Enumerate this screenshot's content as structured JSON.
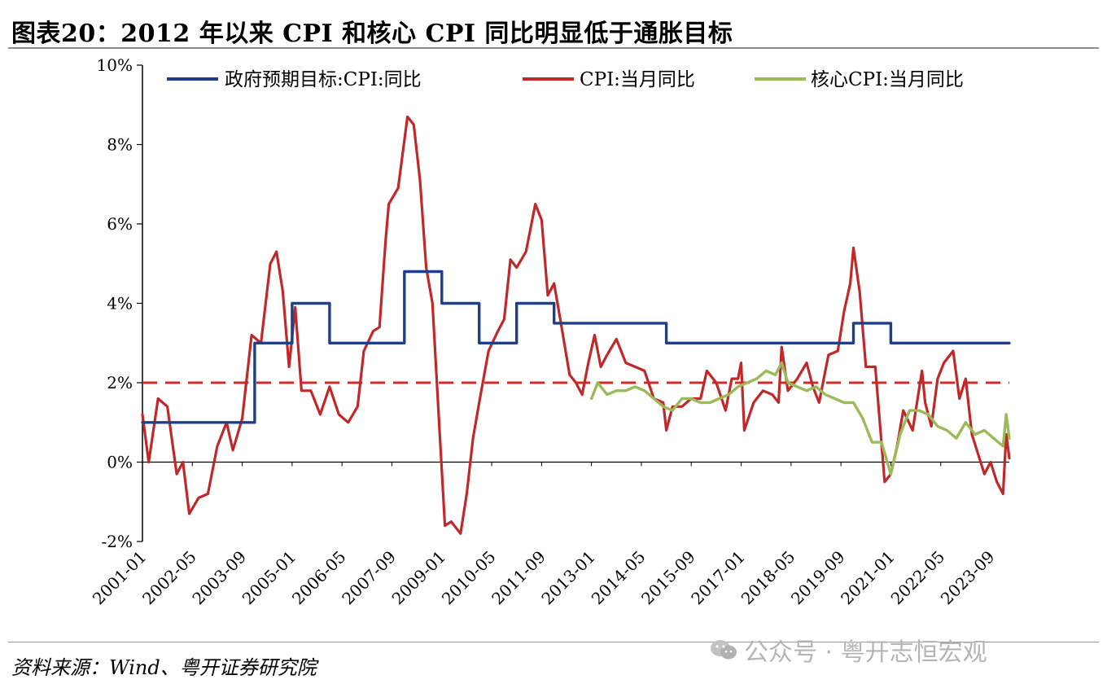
{
  "title": "图表20：2012 年以来 CPI 和核心 CPI 同比明显低于通胀目标",
  "source": "资料来源：Wind、粤开证券研究院",
  "watermark": "公众号 · 粤开志恒宏观",
  "chart_data": {
    "type": "line",
    "ylim": [
      -2,
      10
    ],
    "yticks": [
      "10%",
      "8%",
      "6%",
      "4%",
      "2%",
      "0%",
      "-2%"
    ],
    "ytick_values": [
      10,
      8,
      6,
      4,
      2,
      0,
      -2
    ],
    "x_start": "2001-01",
    "x_end": "2024-03",
    "xticks": [
      "2001-01",
      "2002-05",
      "2003-09",
      "2005-01",
      "2006-05",
      "2007-09",
      "2009-01",
      "2010-05",
      "2011-09",
      "2013-01",
      "2014-05",
      "2015-09",
      "2017-01",
      "2018-05",
      "2019-09",
      "2021-01",
      "2022-05",
      "2023-09"
    ],
    "reference_line": {
      "value": 2,
      "color": "#d42b27",
      "style": "dashed"
    },
    "legend_placement": "top",
    "series": [
      {
        "name": "政府预期目标:CPI:同比",
        "color": "#1f3f8c",
        "step": true,
        "points": [
          [
            "2001-01",
            1
          ],
          [
            "2004-01",
            1
          ],
          [
            "2004-01",
            3
          ],
          [
            "2005-01",
            3
          ],
          [
            "2005-01",
            4
          ],
          [
            "2006-01",
            4
          ],
          [
            "2006-01",
            3
          ],
          [
            "2008-01",
            3
          ],
          [
            "2008-01",
            4.8
          ],
          [
            "2009-01",
            4.8
          ],
          [
            "2009-01",
            4
          ],
          [
            "2010-01",
            4
          ],
          [
            "2010-01",
            3
          ],
          [
            "2011-01",
            3
          ],
          [
            "2011-01",
            4
          ],
          [
            "2012-01",
            4
          ],
          [
            "2012-01",
            3.5
          ],
          [
            "2015-01",
            3.5
          ],
          [
            "2015-01",
            3
          ],
          [
            "2020-01",
            3
          ],
          [
            "2020-01",
            3.5
          ],
          [
            "2021-01",
            3.5
          ],
          [
            "2021-01",
            3
          ],
          [
            "2024-03",
            3
          ]
        ]
      },
      {
        "name": "CPI:当月同比",
        "color": "#c0282a",
        "points": [
          [
            "2001-01",
            1.2
          ],
          [
            "2001-03",
            0
          ],
          [
            "2001-06",
            1.6
          ],
          [
            "2001-09",
            1.4
          ],
          [
            "2001-12",
            -0.3
          ],
          [
            "2002-02",
            0
          ],
          [
            "2002-04",
            -1.3
          ],
          [
            "2002-07",
            -0.9
          ],
          [
            "2002-10",
            -0.8
          ],
          [
            "2003-01",
            0.4
          ],
          [
            "2003-04",
            1.0
          ],
          [
            "2003-06",
            0.3
          ],
          [
            "2003-09",
            1.1
          ],
          [
            "2003-12",
            3.2
          ],
          [
            "2004-03",
            3.0
          ],
          [
            "2004-06",
            5.0
          ],
          [
            "2004-08",
            5.3
          ],
          [
            "2004-10",
            4.3
          ],
          [
            "2004-12",
            2.4
          ],
          [
            "2005-02",
            3.9
          ],
          [
            "2005-04",
            1.8
          ],
          [
            "2005-07",
            1.8
          ],
          [
            "2005-10",
            1.2
          ],
          [
            "2006-01",
            1.9
          ],
          [
            "2006-04",
            1.2
          ],
          [
            "2006-07",
            1.0
          ],
          [
            "2006-10",
            1.4
          ],
          [
            "2006-12",
            2.8
          ],
          [
            "2007-03",
            3.3
          ],
          [
            "2007-05",
            3.4
          ],
          [
            "2007-07",
            5.6
          ],
          [
            "2007-08",
            6.5
          ],
          [
            "2007-11",
            6.9
          ],
          [
            "2008-02",
            8.7
          ],
          [
            "2008-04",
            8.5
          ],
          [
            "2008-06",
            7.1
          ],
          [
            "2008-08",
            4.9
          ],
          [
            "2008-10",
            4.0
          ],
          [
            "2008-12",
            1.2
          ],
          [
            "2009-02",
            -1.6
          ],
          [
            "2009-04",
            -1.5
          ],
          [
            "2009-07",
            -1.8
          ],
          [
            "2009-09",
            -0.8
          ],
          [
            "2009-11",
            0.6
          ],
          [
            "2010-01",
            1.5
          ],
          [
            "2010-04",
            2.8
          ],
          [
            "2010-07",
            3.3
          ],
          [
            "2010-09",
            3.6
          ],
          [
            "2010-11",
            5.1
          ],
          [
            "2011-01",
            4.9
          ],
          [
            "2011-04",
            5.3
          ],
          [
            "2011-07",
            6.5
          ],
          [
            "2011-09",
            6.1
          ],
          [
            "2011-11",
            4.2
          ],
          [
            "2012-01",
            4.5
          ],
          [
            "2012-03",
            3.6
          ],
          [
            "2012-06",
            2.2
          ],
          [
            "2012-08",
            2.0
          ],
          [
            "2012-10",
            1.7
          ],
          [
            "2012-12",
            2.5
          ],
          [
            "2013-02",
            3.2
          ],
          [
            "2013-04",
            2.4
          ],
          [
            "2013-06",
            2.7
          ],
          [
            "2013-09",
            3.1
          ],
          [
            "2013-12",
            2.5
          ],
          [
            "2014-03",
            2.4
          ],
          [
            "2014-06",
            2.3
          ],
          [
            "2014-09",
            1.6
          ],
          [
            "2014-12",
            1.5
          ],
          [
            "2015-01",
            0.8
          ],
          [
            "2015-03",
            1.4
          ],
          [
            "2015-06",
            1.4
          ],
          [
            "2015-09",
            1.6
          ],
          [
            "2015-12",
            1.6
          ],
          [
            "2016-02",
            2.3
          ],
          [
            "2016-05",
            2.0
          ],
          [
            "2016-08",
            1.3
          ],
          [
            "2016-10",
            2.1
          ],
          [
            "2016-12",
            2.1
          ],
          [
            "2017-01",
            2.5
          ],
          [
            "2017-02",
            0.8
          ],
          [
            "2017-05",
            1.5
          ],
          [
            "2017-08",
            1.8
          ],
          [
            "2017-11",
            1.7
          ],
          [
            "2018-01",
            1.5
          ],
          [
            "2018-02",
            2.9
          ],
          [
            "2018-04",
            1.8
          ],
          [
            "2018-07",
            2.1
          ],
          [
            "2018-10",
            2.5
          ],
          [
            "2018-12",
            1.9
          ],
          [
            "2019-02",
            1.5
          ],
          [
            "2019-05",
            2.7
          ],
          [
            "2019-08",
            2.8
          ],
          [
            "2019-10",
            3.8
          ],
          [
            "2019-12",
            4.5
          ],
          [
            "2020-01",
            5.4
          ],
          [
            "2020-03",
            4.3
          ],
          [
            "2020-05",
            2.4
          ],
          [
            "2020-08",
            2.4
          ],
          [
            "2020-10",
            0.5
          ],
          [
            "2020-11",
            -0.5
          ],
          [
            "2021-01",
            -0.3
          ],
          [
            "2021-03",
            0.4
          ],
          [
            "2021-05",
            1.3
          ],
          [
            "2021-08",
            0.8
          ],
          [
            "2021-11",
            2.3
          ],
          [
            "2021-12",
            1.5
          ],
          [
            "2022-02",
            0.9
          ],
          [
            "2022-04",
            2.1
          ],
          [
            "2022-06",
            2.5
          ],
          [
            "2022-09",
            2.8
          ],
          [
            "2022-11",
            1.6
          ],
          [
            "2023-01",
            2.1
          ],
          [
            "2023-03",
            0.7
          ],
          [
            "2023-05",
            0.2
          ],
          [
            "2023-07",
            -0.3
          ],
          [
            "2023-09",
            0.0
          ],
          [
            "2023-11",
            -0.5
          ],
          [
            "2024-01",
            -0.8
          ],
          [
            "2024-02",
            0.7
          ],
          [
            "2024-03",
            0.1
          ]
        ]
      },
      {
        "name": "核心CPI:当月同比",
        "color": "#9bbb59",
        "points": [
          [
            "2013-01",
            1.6
          ],
          [
            "2013-03",
            2.0
          ],
          [
            "2013-06",
            1.7
          ],
          [
            "2013-09",
            1.8
          ],
          [
            "2013-12",
            1.8
          ],
          [
            "2014-03",
            1.9
          ],
          [
            "2014-06",
            1.8
          ],
          [
            "2014-09",
            1.6
          ],
          [
            "2014-12",
            1.4
          ],
          [
            "2015-03",
            1.3
          ],
          [
            "2015-06",
            1.6
          ],
          [
            "2015-09",
            1.6
          ],
          [
            "2015-12",
            1.5
          ],
          [
            "2016-03",
            1.5
          ],
          [
            "2016-06",
            1.6
          ],
          [
            "2016-09",
            1.7
          ],
          [
            "2016-12",
            1.9
          ],
          [
            "2017-03",
            2.0
          ],
          [
            "2017-06",
            2.1
          ],
          [
            "2017-09",
            2.3
          ],
          [
            "2017-12",
            2.2
          ],
          [
            "2018-02",
            2.5
          ],
          [
            "2018-04",
            2.0
          ],
          [
            "2018-07",
            1.9
          ],
          [
            "2018-10",
            1.8
          ],
          [
            "2019-01",
            1.9
          ],
          [
            "2019-04",
            1.7
          ],
          [
            "2019-07",
            1.6
          ],
          [
            "2019-10",
            1.5
          ],
          [
            "2020-01",
            1.5
          ],
          [
            "2020-04",
            1.1
          ],
          [
            "2020-07",
            0.5
          ],
          [
            "2020-10",
            0.5
          ],
          [
            "2021-01",
            -0.3
          ],
          [
            "2021-04",
            0.7
          ],
          [
            "2021-07",
            1.3
          ],
          [
            "2021-10",
            1.3
          ],
          [
            "2022-01",
            1.2
          ],
          [
            "2022-04",
            0.9
          ],
          [
            "2022-07",
            0.8
          ],
          [
            "2022-10",
            0.6
          ],
          [
            "2023-01",
            1.0
          ],
          [
            "2023-04",
            0.7
          ],
          [
            "2023-07",
            0.8
          ],
          [
            "2023-10",
            0.6
          ],
          [
            "2024-01",
            0.4
          ],
          [
            "2024-02",
            1.2
          ],
          [
            "2024-03",
            0.6
          ]
        ]
      }
    ]
  }
}
